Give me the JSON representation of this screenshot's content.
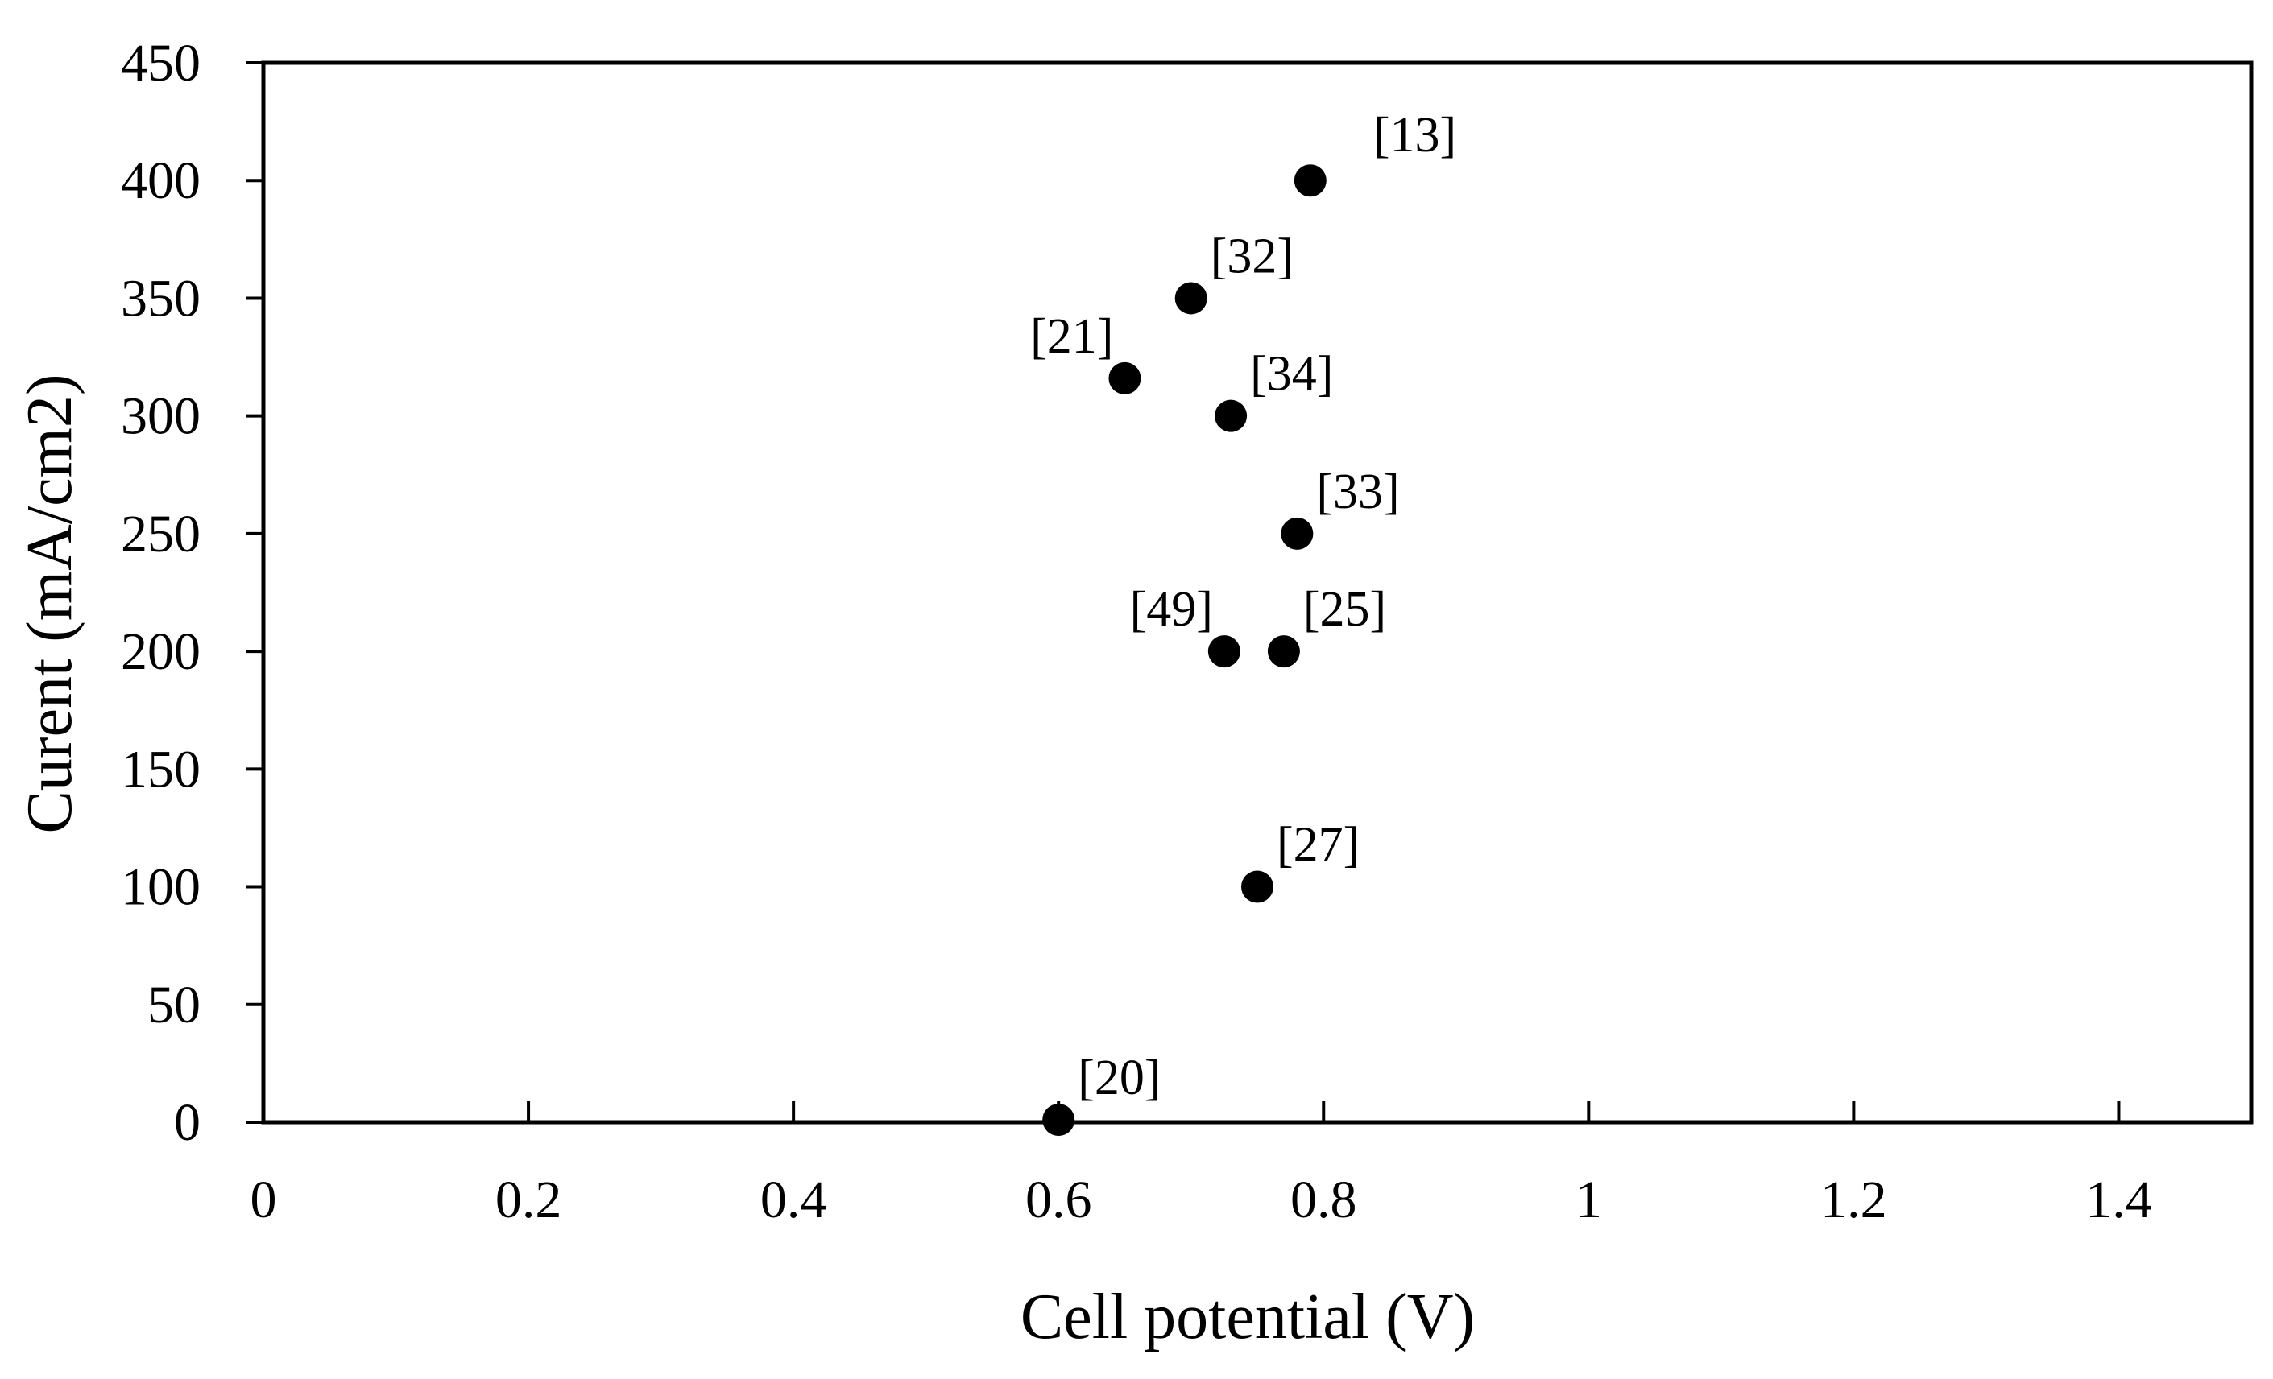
{
  "chart_data": {
    "type": "scatter",
    "title": "",
    "xlabel": "Cell potential (V)",
    "ylabel": "Curent (mA/cm2)",
    "xlim": [
      0,
      1.5
    ],
    "ylim": [
      0,
      450
    ],
    "xticks": [
      0,
      0.2,
      0.4,
      0.6,
      0.8,
      1,
      1.2,
      1.4
    ],
    "xtick_labels": [
      "0",
      "0.2",
      "0.4",
      "0.6",
      "0.8",
      "1",
      "1.2",
      "1.4"
    ],
    "yticks": [
      0,
      50,
      100,
      150,
      200,
      250,
      300,
      350,
      400,
      450
    ],
    "ytick_labels": [
      "0",
      "50",
      "100",
      "150",
      "200",
      "250",
      "300",
      "350",
      "400",
      "450"
    ],
    "grid": false,
    "marker_color": "#000000",
    "points": [
      {
        "x": 0.79,
        "y": 400,
        "label": "[13]",
        "label_pos": "upper-right-far"
      },
      {
        "x": 0.7,
        "y": 350,
        "label": "[32]",
        "label_pos": "upper-right"
      },
      {
        "x": 0.65,
        "y": 316,
        "label": "[21]",
        "label_pos": "upper-left"
      },
      {
        "x": 0.73,
        "y": 300,
        "label": "[34]",
        "label_pos": "upper-right"
      },
      {
        "x": 0.78,
        "y": 250,
        "label": "[33]",
        "label_pos": "upper-right"
      },
      {
        "x": 0.725,
        "y": 200,
        "label": "[49]",
        "label_pos": "upper-left"
      },
      {
        "x": 0.77,
        "y": 200,
        "label": "[25]",
        "label_pos": "upper-right"
      },
      {
        "x": 0.75,
        "y": 100,
        "label": "[27]",
        "label_pos": "upper-right"
      },
      {
        "x": 0.6,
        "y": 1,
        "label": "[20]",
        "label_pos": "upper-right"
      }
    ]
  }
}
